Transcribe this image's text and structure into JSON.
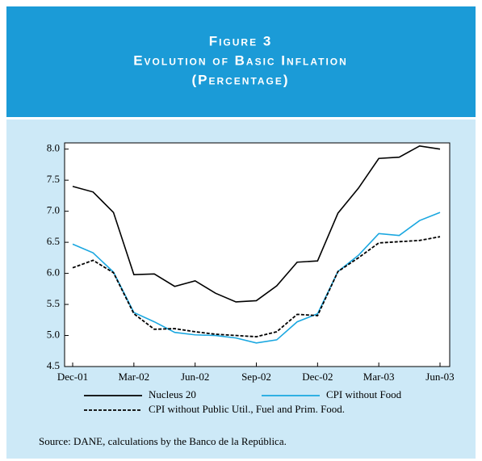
{
  "chart_data": {
    "type": "line",
    "figure_label": "Figure 3",
    "title": "Evolution of Basic Inflation",
    "subtitle": "(Percentage)",
    "categories": [
      "Dec-01",
      null,
      null,
      "Mar-02",
      null,
      null,
      "Jun-02",
      null,
      null,
      "Sep-02",
      null,
      null,
      "Dec-02",
      null,
      null,
      "Mar-03",
      null,
      null,
      "Jun-03"
    ],
    "series": [
      {
        "name": "Nucleus 20",
        "color": "#000000",
        "dash": "solid",
        "values": [
          7.4,
          7.31,
          6.98,
          5.98,
          5.99,
          5.79,
          5.88,
          5.68,
          5.54,
          5.56,
          5.8,
          6.18,
          6.2,
          6.97,
          7.37,
          7.85,
          7.87,
          8.05,
          8.0
        ]
      },
      {
        "name": "CPI without Food",
        "color": "#1aa7e0",
        "dash": "solid",
        "values": [
          6.47,
          6.33,
          6.02,
          5.37,
          5.22,
          5.05,
          5.01,
          5.0,
          4.96,
          4.88,
          4.93,
          5.22,
          5.35,
          6.03,
          6.29,
          6.64,
          6.61,
          6.85,
          6.98
        ]
      },
      {
        "name": "CPI without Public Util., Fuel and Prim. Food.",
        "color": "#000000",
        "dash": "dashed",
        "values": [
          6.09,
          6.21,
          6.01,
          5.35,
          5.1,
          5.11,
          5.06,
          5.02,
          5.0,
          4.98,
          5.06,
          5.34,
          5.32,
          6.03,
          6.25,
          6.49,
          6.51,
          6.53,
          6.59
        ]
      }
    ],
    "ylim": [
      4.5,
      8.1
    ],
    "yticks": [
      {
        "value": 4.5,
        "label": "4.5"
      },
      {
        "value": 5,
        "label": "5.0"
      },
      {
        "value": 5.5,
        "label": "5.5"
      },
      {
        "value": 6,
        "label": "6.0"
      },
      {
        "value": 6.5,
        "label": "6.5"
      },
      {
        "value": 7,
        "label": "7.0"
      },
      {
        "value": 7.5,
        "label": "7.5"
      },
      {
        "value": 8,
        "label": "8.0"
      }
    ],
    "source": "Source:  DANE, calculations by the Banco de la República."
  }
}
